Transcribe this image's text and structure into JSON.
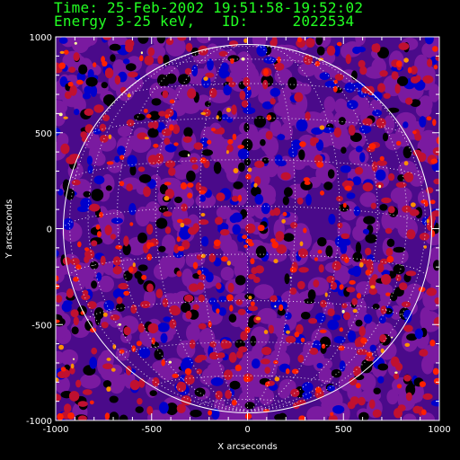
{
  "header": {
    "line1": "Time: 25-Feb-2002 19:51:58-19:52:02",
    "line2": "Energy 3-25 keV,   ID:     2022534"
  },
  "chart_data": {
    "type": "heatmap",
    "xlabel": "X arcseconds",
    "ylabel": "Y arcseconds",
    "xlim": [
      -1000,
      1000
    ],
    "ylim": [
      -1000,
      1000
    ],
    "xticks": [
      -1000,
      -500,
      0,
      500,
      1000
    ],
    "yticks": [
      -1000,
      -500,
      0,
      500,
      1000
    ],
    "xtick_labels": [
      "-1000",
      "-500",
      "0",
      "500",
      "1000"
    ],
    "ytick_labels": [
      "-1000",
      "-500",
      "0",
      "500",
      "1000"
    ],
    "solar_radius": 960,
    "grid": "heliographic lat/lon dotted grid",
    "colors": {
      "axis": "#ffffff",
      "header_text": "#22ff22",
      "background": "#000000",
      "colormap": [
        "#000000",
        "#0000cc",
        "#4000a0",
        "#7a1aa0",
        "#c01030",
        "#ff2000",
        "#ff9000",
        "#ffffa0"
      ]
    }
  }
}
